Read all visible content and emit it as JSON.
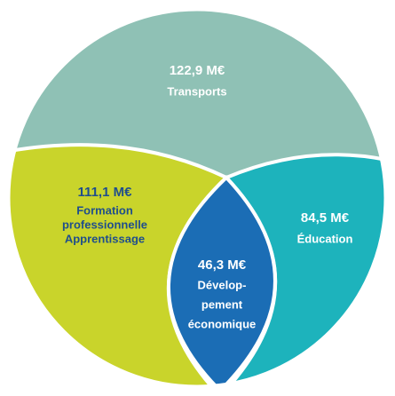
{
  "regions": [
    {
      "value": "122,9 M€",
      "label": [
        "Transports"
      ]
    },
    {
      "value": "111,1 M€",
      "label": [
        "Formation",
        "professionnelle",
        "Apprentissage"
      ]
    },
    {
      "value": "84,5 M€",
      "label": [
        "Éducation"
      ]
    },
    {
      "value": "46,3 M€",
      "label": [
        "Dévelop-",
        "pement",
        "économique"
      ]
    }
  ]
}
